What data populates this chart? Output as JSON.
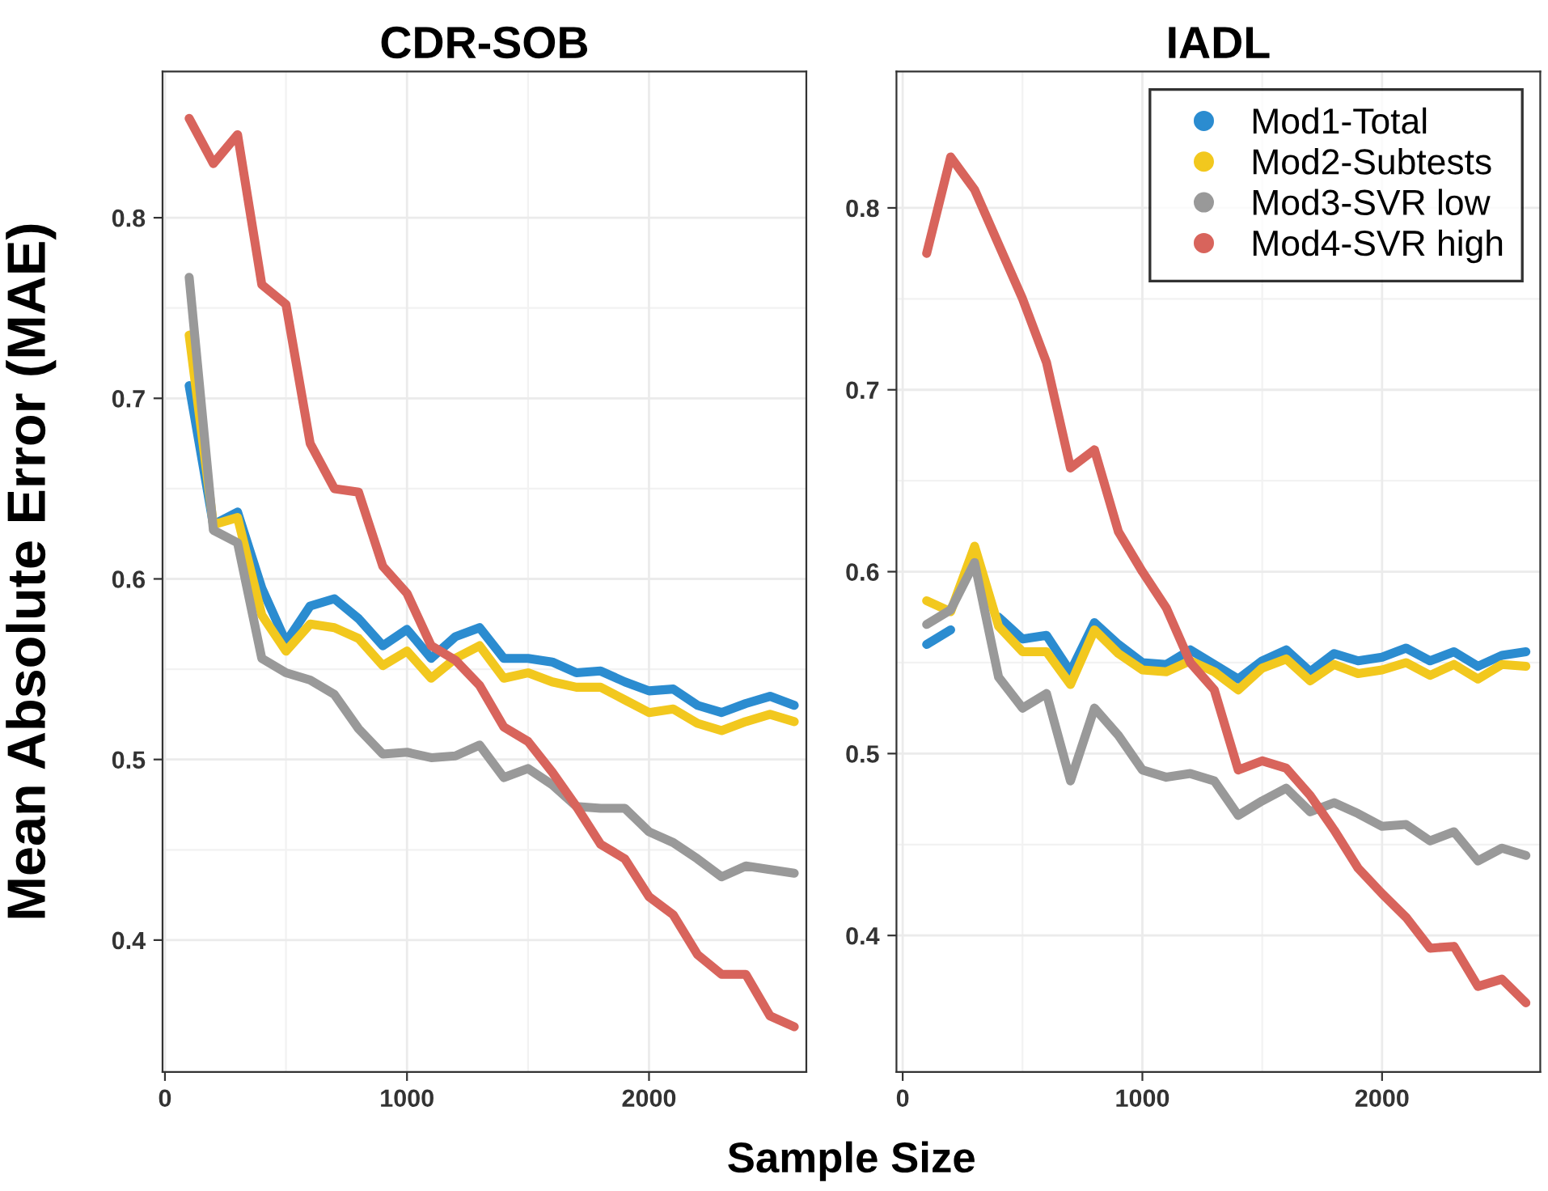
{
  "chart_data": [
    {
      "type": "line",
      "title": "CDR-SOB",
      "xlabel": "Sample Size",
      "ylabel": "Mean Absolute Error (MAE)",
      "x": [
        100,
        200,
        300,
        400,
        500,
        600,
        700,
        800,
        900,
        1000,
        1100,
        1200,
        1300,
        1400,
        1500,
        1600,
        1700,
        1800,
        1900,
        2000,
        2100,
        2200,
        2300,
        2400,
        2500,
        2600
      ],
      "xlim": [
        -10,
        2650
      ],
      "xticks": [
        0,
        1000,
        2000
      ],
      "ylim": [
        0.327,
        0.881
      ],
      "yticks": [
        0.4,
        0.5,
        0.6,
        0.7,
        0.8
      ],
      "grid": true,
      "legend": false,
      "series": [
        {
          "color": "#2b8cd0",
          "values": [
            0.707,
            0.63,
            0.637,
            0.595,
            0.565,
            0.585,
            0.589,
            0.578,
            0.563,
            0.572,
            0.556,
            0.568,
            0.573,
            0.556,
            0.556,
            0.554,
            0.548,
            0.549,
            0.543,
            0.538,
            0.539,
            0.53,
            0.526,
            0.531,
            0.535,
            0.53
          ]
        },
        {
          "color": "#f2c81e",
          "values": [
            0.735,
            0.63,
            0.634,
            0.58,
            0.56,
            0.575,
            0.573,
            0.567,
            0.552,
            0.56,
            0.545,
            0.556,
            0.563,
            0.545,
            0.548,
            0.543,
            0.54,
            0.54,
            0.533,
            0.526,
            0.528,
            0.52,
            0.516,
            0.521,
            0.525,
            0.521
          ]
        },
        {
          "color": "#999999",
          "values": [
            0.767,
            0.627,
            0.62,
            0.556,
            0.548,
            0.544,
            0.536,
            0.517,
            0.503,
            0.504,
            0.501,
            0.502,
            0.508,
            0.49,
            0.495,
            0.486,
            0.474,
            0.473,
            0.473,
            0.46,
            0.454,
            0.445,
            0.435,
            0.441,
            0.439,
            0.437
          ]
        },
        {
          "color": "#d8645c",
          "values": [
            0.855,
            0.83,
            0.846,
            0.763,
            0.752,
            0.675,
            0.65,
            0.648,
            0.607,
            0.592,
            0.563,
            0.555,
            0.541,
            0.518,
            0.51,
            0.493,
            0.474,
            0.453,
            0.445,
            0.424,
            0.414,
            0.392,
            0.381,
            0.381,
            0.358,
            0.352
          ]
        }
      ]
    },
    {
      "type": "line",
      "title": "IADL",
      "x": [
        100,
        200,
        300,
        400,
        500,
        600,
        700,
        800,
        900,
        1000,
        1100,
        1200,
        1300,
        1400,
        1500,
        1600,
        1700,
        1800,
        1900,
        2000,
        2100,
        2200,
        2300,
        2400,
        2500,
        2600
      ],
      "xlim": [
        -26,
        2660
      ],
      "xticks": [
        0,
        1000,
        2000
      ],
      "ylim": [
        0.325,
        0.875
      ],
      "yticks": [
        0.4,
        0.5,
        0.6,
        0.7,
        0.8
      ],
      "grid": true,
      "legend": "top right",
      "series": [
        {
          "name": "Mod1-Total",
          "color": "#2b8cd0",
          "values": [
            0.56,
            0.568,
            null,
            0.575,
            0.563,
            0.565,
            0.545,
            0.572,
            0.56,
            0.55,
            0.549,
            0.557,
            0.549,
            0.541,
            0.551,
            0.557,
            0.545,
            0.555,
            0.551,
            0.553,
            0.558,
            0.551,
            0.556,
            0.548,
            0.554,
            0.556
          ]
        },
        {
          "name": "Mod2-Subtests",
          "color": "#f2c81e",
          "values": [
            0.584,
            0.578,
            0.614,
            0.57,
            0.556,
            0.556,
            0.538,
            0.568,
            0.555,
            0.546,
            0.545,
            0.551,
            0.545,
            0.535,
            0.547,
            0.552,
            0.54,
            0.549,
            0.544,
            0.546,
            0.55,
            0.543,
            0.549,
            0.541,
            0.549,
            0.548
          ]
        },
        {
          "name": "Mod3-SVR low",
          "color": "#999999",
          "values": [
            0.571,
            0.579,
            0.605,
            0.542,
            0.525,
            0.533,
            0.485,
            0.525,
            0.51,
            0.491,
            0.487,
            0.489,
            0.485,
            0.466,
            0.474,
            0.481,
            0.468,
            0.473,
            0.467,
            0.46,
            0.461,
            0.452,
            0.457,
            0.441,
            0.448,
            0.444
          ]
        },
        {
          "name": "Mod4-SVR high",
          "color": "#d8645c",
          "values": [
            0.775,
            0.828,
            0.81,
            0.78,
            0.75,
            0.715,
            0.657,
            0.667,
            0.622,
            0.6,
            0.58,
            0.55,
            0.535,
            0.491,
            0.496,
            0.492,
            0.477,
            0.458,
            0.437,
            0.423,
            0.41,
            0.393,
            0.394,
            0.372,
            0.376,
            0.363
          ]
        }
      ]
    }
  ]
}
